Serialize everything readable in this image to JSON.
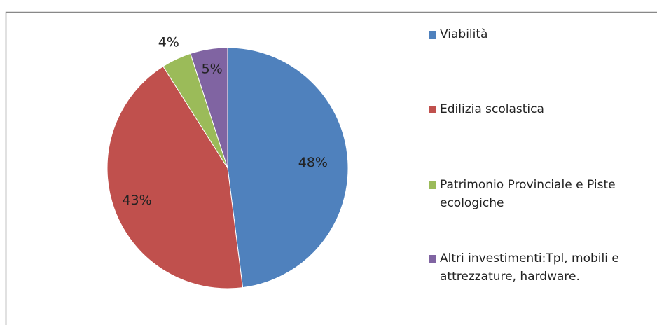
{
  "chart_data": {
    "type": "pie",
    "categories": [
      "Viabilità",
      "Edilizia scolastica",
      "Patrimonio Provinciale e Piste ecologiche",
      "Altri investimenti:Tpl, mobili e attrezzature, hardware."
    ],
    "values": [
      48,
      43,
      4,
      5
    ],
    "value_labels": [
      "48%",
      "43%",
      "4%",
      "5%"
    ],
    "colors": [
      "#4f81bd",
      "#c0504d",
      "#9bbb59",
      "#8064a2"
    ],
    "legend": "right"
  }
}
